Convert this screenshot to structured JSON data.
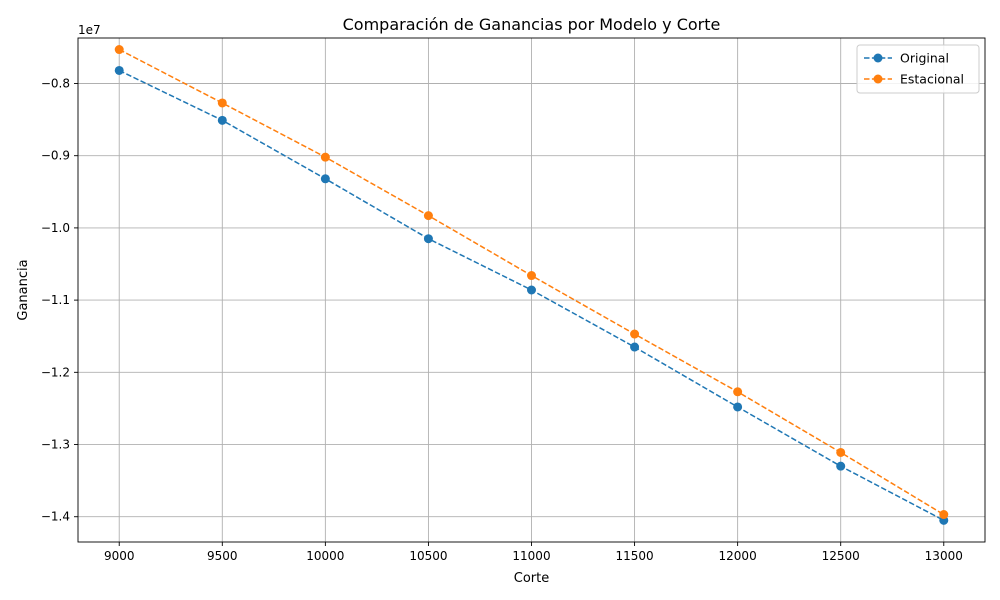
{
  "chart_data": {
    "type": "line",
    "title": "Comparación de Ganancias por Modelo y Corte",
    "xlabel": "Corte",
    "ylabel": "Ganancia",
    "y_offset_label": "1e7",
    "x": [
      9000,
      9500,
      10000,
      10500,
      11000,
      11500,
      12000,
      12500,
      13000
    ],
    "xlim": [
      8800,
      13200
    ],
    "ylim": [
      -1.435,
      -0.737
    ],
    "x_ticks": [
      9000,
      9500,
      10000,
      10500,
      11000,
      11500,
      12000,
      12500,
      13000
    ],
    "x_tick_labels": [
      "9000",
      "9500",
      "10000",
      "10500",
      "11000",
      "11500",
      "12000",
      "12500",
      "13000"
    ],
    "y_ticks": [
      -0.8,
      -0.9,
      -1.0,
      -1.1,
      -1.2,
      -1.3,
      -1.4
    ],
    "y_tick_labels": [
      "−0.8",
      "−0.9",
      "−1.0",
      "−1.1",
      "−1.2",
      "−1.3",
      "−1.4"
    ],
    "grid": true,
    "legend_position": "top-right",
    "series": [
      {
        "name": "Original",
        "color": "#1f77b4",
        "line_style": "dashed",
        "marker": "circle",
        "values": [
          -0.782,
          -0.851,
          -0.932,
          -1.015,
          -1.086,
          -1.165,
          -1.248,
          -1.33,
          -1.405
        ]
      },
      {
        "name": "Estacional",
        "color": "#ff7f0e",
        "line_style": "dashed",
        "marker": "circle",
        "values": [
          -0.753,
          -0.827,
          -0.902,
          -0.983,
          -1.066,
          -1.147,
          -1.227,
          -1.311,
          -1.397
        ]
      }
    ]
  }
}
